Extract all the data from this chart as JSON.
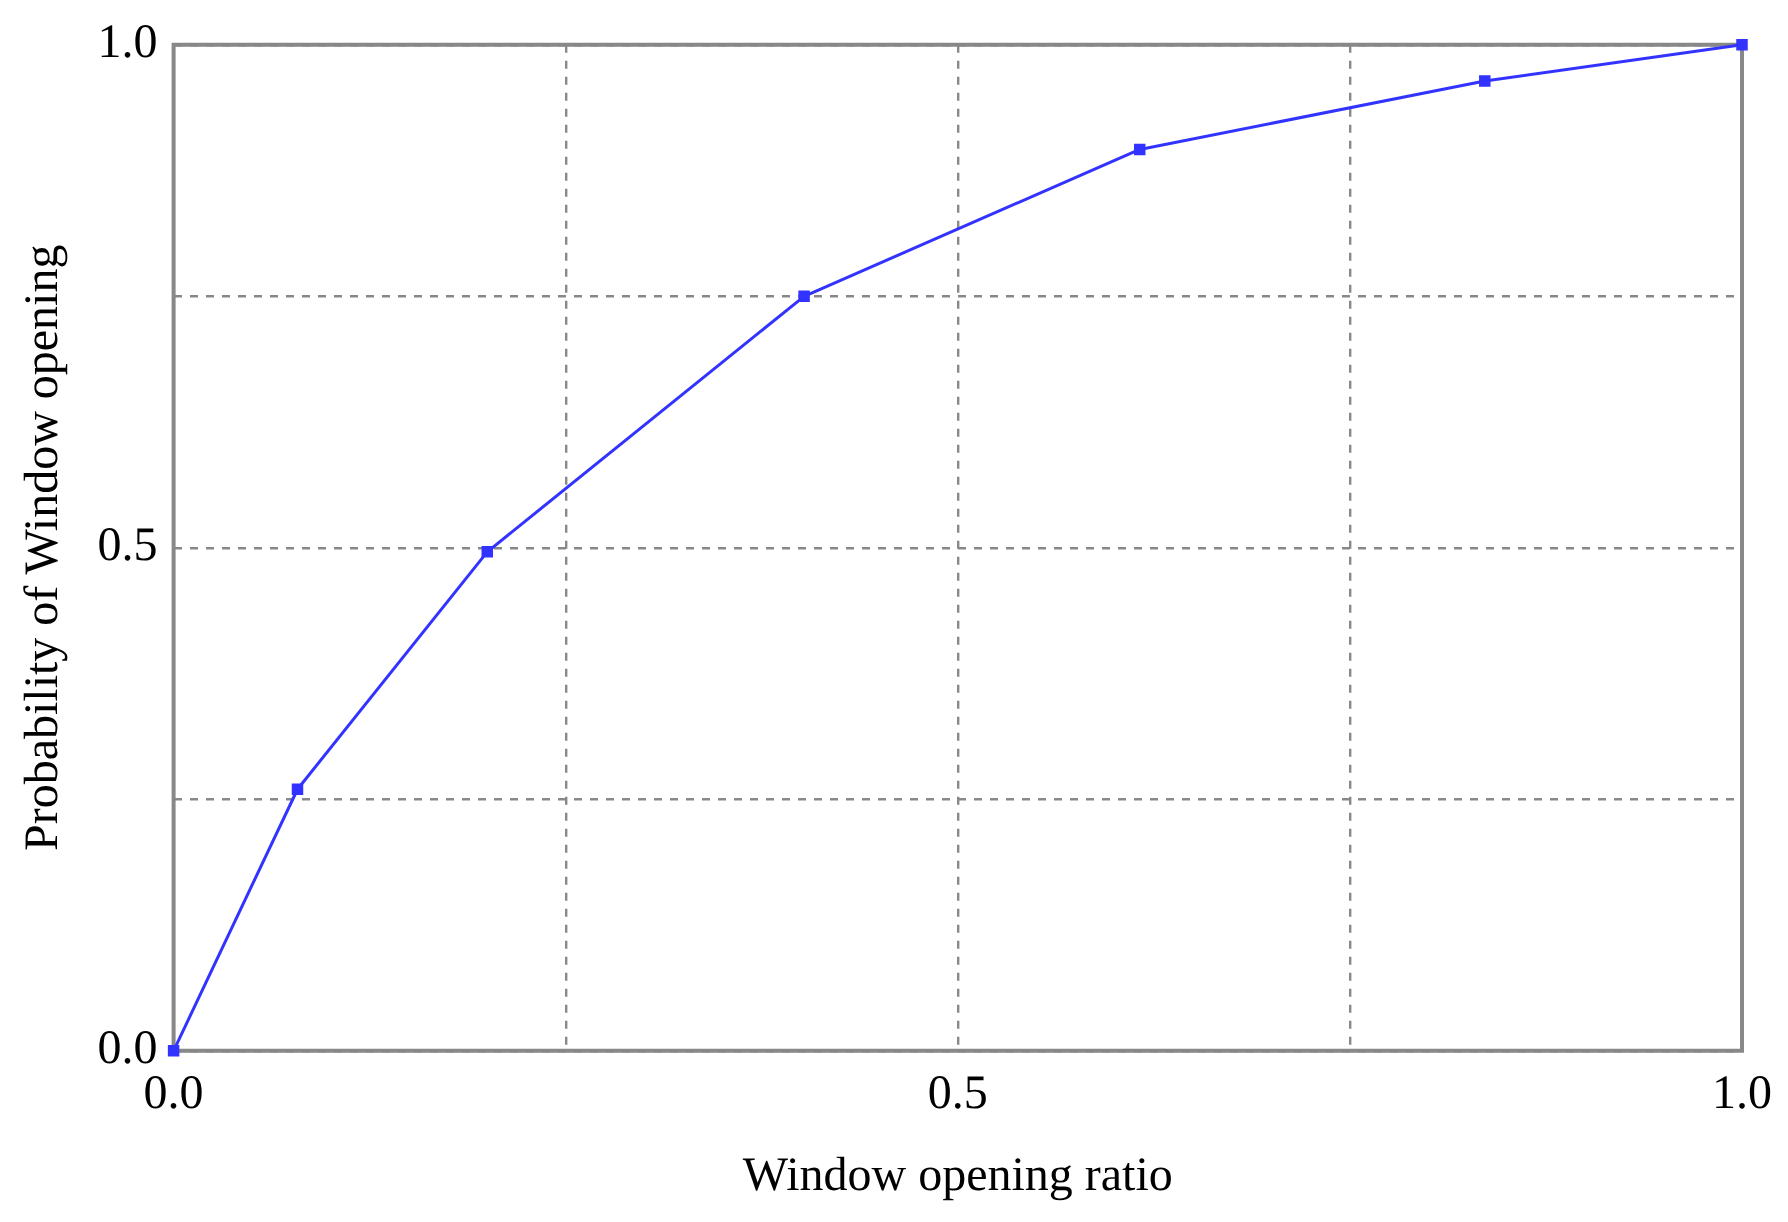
{
  "chart_data": {
    "type": "line",
    "xlabel": "Window opening ratio",
    "ylabel": "Probability of Window opening",
    "x": [
      0,
      0.079,
      0.2,
      0.402,
      0.616,
      0.836,
      1
    ],
    "series": [
      {
        "color": "#3333ff",
        "values": [
          0,
          0.26,
          0.496,
          0.75,
          0.896,
          0.964,
          1
        ]
      }
    ],
    "xlim": [
      0,
      1
    ],
    "ylim": [
      0,
      1
    ],
    "xticks": [
      {
        "value": 0,
        "label": "0.0"
      },
      {
        "value": 0.25,
        "label": null
      },
      {
        "value": 0.5,
        "label": "0.5"
      },
      {
        "value": 0.75,
        "label": null
      },
      {
        "value": 1,
        "label": "1.0"
      }
    ],
    "yticks": [
      {
        "value": 0,
        "label": "0.0"
      },
      {
        "value": 0.25,
        "label": null
      },
      {
        "value": 0.5,
        "label": "0.5"
      },
      {
        "value": 0.75,
        "label": null
      },
      {
        "value": 1,
        "label": "1.0"
      }
    ],
    "grid": true,
    "legend": false,
    "marker": "square",
    "line_style": "solid"
  }
}
